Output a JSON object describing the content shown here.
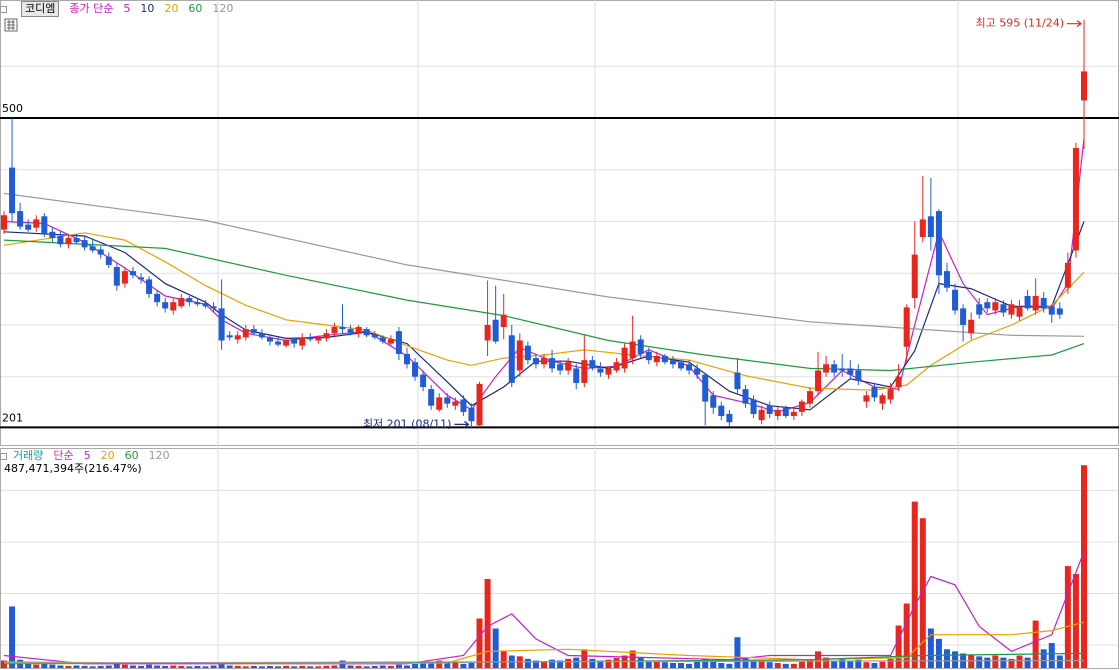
{
  "chart_data": [
    {
      "type": "candlestick",
      "title": "코디엠",
      "ma_label": "종가 단순",
      "ylim": [
        184,
        614
      ],
      "grid_y": [
        250,
        300,
        350,
        400,
        450,
        550
      ],
      "ref_lines": [
        {
          "value": 500,
          "label": "500"
        },
        {
          "value": 201,
          "label": "201"
        }
      ],
      "up_color": "#e8261e",
      "down_color": "#1f5cd6",
      "open": [
        392,
        452,
        410,
        397,
        394,
        405,
        390,
        386,
        378,
        384,
        382,
        376,
        373,
        366,
        356,
        340,
        352,
        346,
        344,
        330,
        322,
        314,
        318,
        326,
        322,
        321,
        318,
        316,
        290,
        286,
        288,
        296,
        292,
        288,
        284,
        280,
        286,
        280,
        288,
        285,
        287,
        292,
        298,
        296,
        292,
        296,
        290,
        288,
        282,
        294,
        272,
        264,
        252,
        238,
        218,
        230,
        222,
        228,
        220,
        203,
        285,
        305,
        298,
        290,
        256,
        280,
        268,
        262,
        268,
        262,
        256,
        258,
        244,
        266,
        258,
        252,
        256,
        258,
        268,
        286,
        274,
        264,
        270,
        266,
        264,
        262,
        258,
        252,
        232,
        222,
        214,
        254,
        238,
        228,
        208,
        222,
        212,
        220,
        212,
        216,
        224,
        236,
        254,
        262,
        258,
        258,
        256,
        226,
        240,
        224,
        228,
        240,
        279,
        326,
        385,
        405,
        410,
        352,
        334,
        316,
        292,
        320,
        322,
        314,
        320,
        310,
        308,
        328,
        314,
        326,
        318,
        316,
        336,
        372,
        517
      ],
      "high": [
        410,
        500,
        418,
        402,
        406,
        408,
        394,
        390,
        388,
        388,
        386,
        382,
        376,
        370,
        360,
        356,
        356,
        350,
        347,
        334,
        326,
        326,
        330,
        328,
        326,
        324,
        322,
        344,
        294,
        294,
        300,
        300,
        296,
        291,
        288,
        288,
        288,
        292,
        292,
        290,
        296,
        302,
        320,
        300,
        300,
        298,
        294,
        290,
        290,
        298,
        278,
        268,
        256,
        242,
        234,
        234,
        230,
        232,
        224,
        245,
        343,
        338,
        330,
        300,
        292,
        284,
        272,
        272,
        276,
        266,
        268,
        262,
        290,
        270,
        264,
        260,
        268,
        282,
        309,
        290,
        278,
        274,
        272,
        270,
        266,
        266,
        262,
        254,
        236,
        226,
        218,
        268,
        242,
        232,
        222,
        226,
        222,
        222,
        220,
        228,
        240,
        274,
        270,
        266,
        272,
        266,
        262,
        236,
        244,
        234,
        244,
        262,
        320,
        400,
        444,
        442,
        412,
        360,
        340,
        320,
        312,
        326,
        326,
        326,
        324,
        324,
        324,
        334,
        345,
        332,
        320,
        322,
        370,
        476,
        595
      ],
      "low": [
        388,
        400,
        392,
        390,
        390,
        385,
        380,
        375,
        374,
        378,
        372,
        370,
        364,
        355,
        333,
        336,
        345,
        340,
        326,
        318,
        312,
        310,
        316,
        318,
        318,
        316,
        312,
        276,
        285,
        282,
        285,
        290,
        286,
        280,
        279,
        278,
        278,
        276,
        284,
        282,
        284,
        288,
        292,
        290,
        288,
        288,
        286,
        282,
        280,
        266,
        258,
        246,
        236,
        218,
        216,
        220,
        218,
        212,
        201,
        201,
        270,
        282,
        286,
        240,
        250,
        262,
        258,
        258,
        254,
        252,
        252,
        238,
        240,
        256,
        250,
        248,
        254,
        254,
        262,
        268,
        262,
        260,
        262,
        258,
        256,
        252,
        248,
        203,
        214,
        208,
        202,
        234,
        220,
        210,
        204,
        210,
        208,
        210,
        208,
        212,
        220,
        232,
        250,
        250,
        250,
        248,
        242,
        220,
        226,
        218,
        224,
        236,
        264,
        316,
        380,
        372,
        330,
        332,
        310,
        284,
        286,
        306,
        312,
        310,
        308,
        306,
        304,
        314,
        310,
        312,
        302,
        306,
        330,
        365,
        470
      ],
      "close": [
        406,
        408,
        395,
        392,
        402,
        388,
        384,
        378,
        384,
        380,
        375,
        372,
        368,
        358,
        338,
        352,
        348,
        344,
        330,
        322,
        316,
        322,
        326,
        322,
        320,
        318,
        316,
        285,
        288,
        290,
        296,
        292,
        288,
        284,
        281,
        285,
        282,
        288,
        286,
        288,
        292,
        298,
        296,
        292,
        298,
        290,
        288,
        284,
        286,
        272,
        262,
        250,
        240,
        222,
        230,
        224,
        226,
        216,
        207,
        243,
        300,
        284,
        310,
        244,
        285,
        266,
        262,
        268,
        258,
        256,
        264,
        244,
        266,
        258,
        254,
        258,
        264,
        278,
        284,
        272,
        266,
        270,
        264,
        262,
        258,
        256,
        252,
        226,
        220,
        212,
        206,
        238,
        224,
        214,
        218,
        214,
        218,
        212,
        216,
        226,
        236,
        256,
        262,
        254,
        256,
        252,
        246,
        232,
        230,
        232,
        238,
        250,
        317,
        368,
        402,
        385,
        348,
        336,
        314,
        300,
        305,
        310,
        316,
        322,
        312,
        320,
        318,
        316,
        328,
        316,
        310,
        310,
        360,
        471,
        545
      ],
      "ma": [
        {
          "name": "5",
          "color": "#c81ec8",
          "x": [
            0,
            5,
            10,
            15,
            20,
            25,
            27,
            30,
            35,
            40,
            45,
            50,
            55,
            58,
            61,
            64,
            68,
            72,
            76,
            80,
            85,
            88,
            92,
            96,
            100,
            104,
            108,
            111,
            113,
            116,
            119,
            122,
            126,
            130,
            132,
            134
          ],
          "values": [
            400,
            398,
            380,
            355,
            328,
            320,
            305,
            292,
            285,
            290,
            294,
            270,
            232,
            218,
            250,
            278,
            265,
            258,
            260,
            276,
            260,
            232,
            225,
            216,
            225,
            256,
            240,
            238,
            300,
            390,
            340,
            310,
            318,
            316,
            340,
            480
          ]
        },
        {
          "name": "10",
          "color": "#1a2a80",
          "x": [
            0,
            10,
            15,
            20,
            25,
            27,
            30,
            35,
            40,
            45,
            50,
            55,
            58,
            62,
            66,
            70,
            75,
            80,
            85,
            90,
            95,
            100,
            105,
            110,
            113,
            116,
            120,
            125,
            130,
            134
          ],
          "values": [
            390,
            386,
            370,
            340,
            322,
            310,
            295,
            287,
            288,
            293,
            282,
            245,
            222,
            240,
            265,
            265,
            258,
            270,
            264,
            236,
            222,
            218,
            248,
            240,
            275,
            340,
            335,
            318,
            318,
            400
          ]
        },
        {
          "name": "20",
          "color": "#eaa000",
          "x": [
            0,
            10,
            15,
            20,
            25,
            30,
            35,
            40,
            45,
            50,
            55,
            58,
            62,
            67,
            72,
            78,
            85,
            92,
            100,
            108,
            112,
            115,
            120,
            125,
            130,
            134
          ],
          "values": [
            377,
            389,
            382,
            361,
            338,
            319,
            305,
            300,
            295,
            280,
            266,
            261,
            268,
            271,
            276,
            271,
            266,
            251,
            239,
            237,
            242,
            261,
            285,
            300,
            319,
            351
          ]
        },
        {
          "name": "60",
          "color": "#1e9a3c",
          "x": [
            0,
            20,
            35,
            50,
            62,
            75,
            87,
            100,
            110,
            120,
            130,
            134
          ],
          "values": [
            382,
            374,
            348,
            324,
            309,
            285,
            271,
            258,
            256,
            264,
            271,
            282
          ]
        },
        {
          "name": "120",
          "color": "#999999",
          "x": [
            0,
            25,
            50,
            75,
            100,
            125,
            134
          ],
          "values": [
            427,
            401,
            358,
            327,
            303,
            290,
            289
          ]
        }
      ],
      "annotations": [
        {
          "text": "최고 595 (11/24)",
          "index": 134,
          "value": 595,
          "color": "#e8261e"
        },
        {
          "text": "최저 201 (08/11)",
          "index": 58,
          "value": 201,
          "color": "#1a2a80"
        }
      ]
    },
    {
      "type": "bar",
      "title": "거래량",
      "title_color": "#10a0a0",
      "ma_label": "단순",
      "last_label": "487,471,394주(216.47%)",
      "ylim": [
        0,
        500
      ],
      "grid_y": [
        55,
        179,
        303,
        427
      ],
      "values": [
        18,
        148,
        20,
        10,
        8,
        10,
        8,
        6,
        5,
        6,
        5,
        4,
        5,
        6,
        10,
        8,
        6,
        5,
        8,
        6,
        5,
        6,
        5,
        4,
        5,
        4,
        6,
        14,
        6,
        5,
        4,
        5,
        4,
        5,
        4,
        5,
        4,
        5,
        4,
        4,
        5,
        6,
        18,
        6,
        5,
        4,
        5,
        6,
        5,
        8,
        6,
        10,
        12,
        15,
        18,
        12,
        14,
        10,
        12,
        119,
        214,
        95,
        40,
        30,
        28,
        22,
        18,
        16,
        20,
        18,
        22,
        25,
        45,
        22,
        18,
        20,
        24,
        30,
        42,
        25,
        18,
        15,
        14,
        12,
        12,
        10,
        15,
        22,
        16,
        12,
        10,
        74,
        25,
        18,
        20,
        14,
        12,
        10,
        10,
        15,
        20,
        40,
        25,
        18,
        22,
        16,
        20,
        14,
        12,
        15,
        22,
        102,
        155,
        400,
        360,
        95,
        70,
        45,
        40,
        35,
        30,
        28,
        25,
        30,
        25,
        22,
        30,
        25,
        114,
        45,
        60,
        30,
        245,
        226,
        487.471394
      ],
      "ma": [
        {
          "name": "5",
          "color": "#c81ec8",
          "x": [
            0,
            5,
            10,
            50,
            57,
            60,
            63,
            66,
            70,
            90,
            95,
            110,
            113,
            115,
            118,
            121,
            125,
            130,
            134
          ],
          "values": [
            30,
            20,
            10,
            10,
            30,
            100,
            130,
            70,
            30,
            20,
            30,
            30,
            150,
            220,
            200,
            100,
            40,
            80,
            280
          ]
        },
        {
          "name": "20",
          "color": "#eaa000",
          "x": [
            0,
            30,
            55,
            60,
            70,
            85,
            100,
            112,
            115,
            125,
            130,
            134
          ],
          "values": [
            15,
            10,
            12,
            40,
            45,
            30,
            20,
            25,
            80,
            80,
            90,
            110
          ]
        },
        {
          "name": "60",
          "color": "#1e9a3c",
          "x": [
            0,
            60,
            100,
            114,
            134
          ],
          "values": [
            10,
            14,
            20,
            30,
            35
          ]
        },
        {
          "name": "120",
          "color": "#999999",
          "x": [
            0,
            134
          ],
          "values": [
            12,
            18
          ]
        }
      ]
    }
  ]
}
